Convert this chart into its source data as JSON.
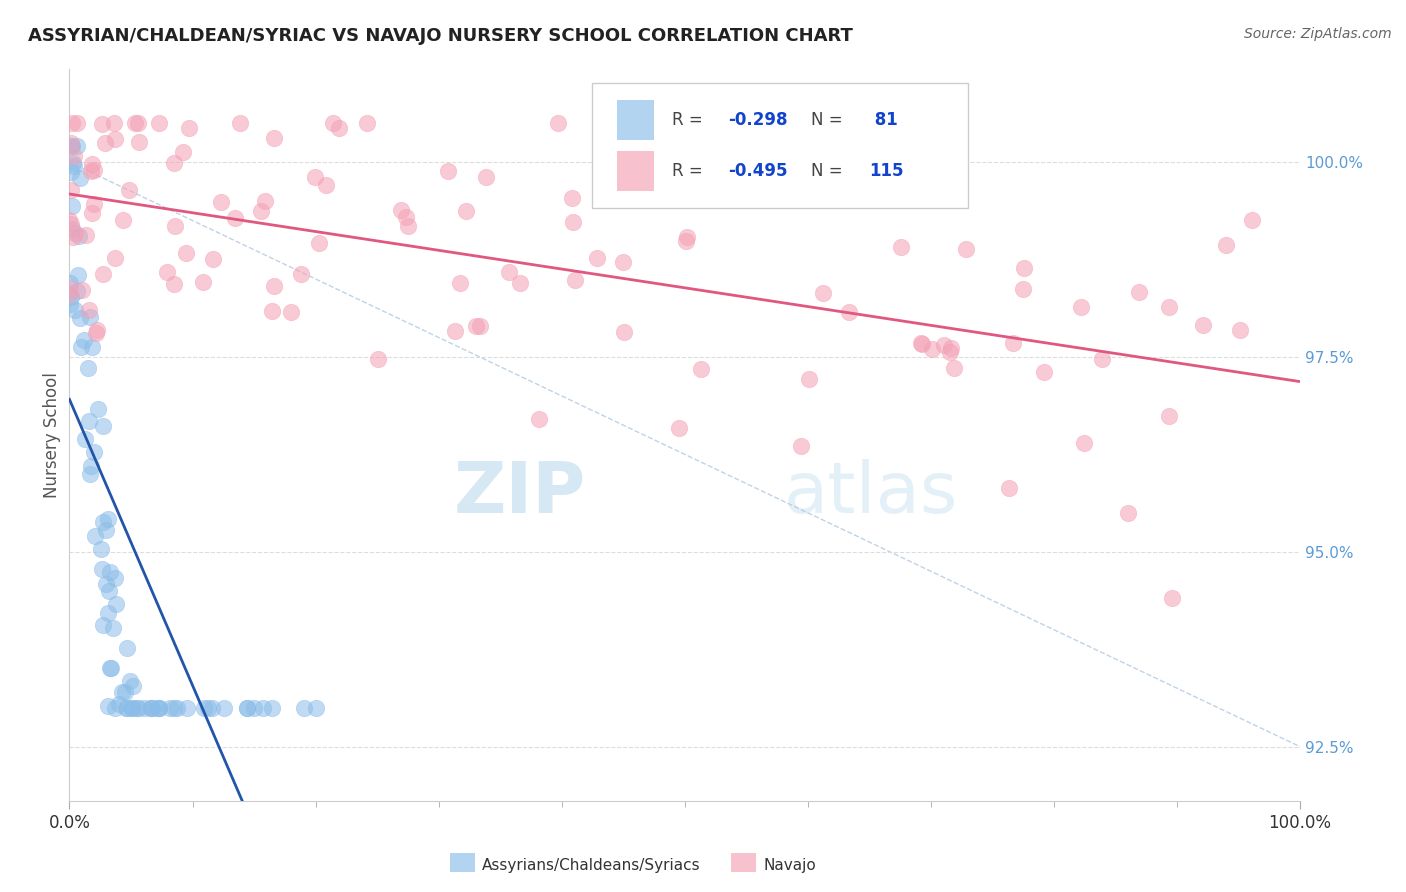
{
  "title": "ASSYRIAN/CHALDEAN/SYRIAC VS NAVAJO NURSERY SCHOOL CORRELATION CHART",
  "source": "Source: ZipAtlas.com",
  "ylabel": "Nursery School",
  "legend_entries": [
    {
      "label": "Assyrians/Chaldeans/Syriacs",
      "R": -0.298,
      "N": 81,
      "color": "#8bbde8",
      "line_color": "#2255aa"
    },
    {
      "label": "Navajo",
      "R": -0.495,
      "N": 115,
      "color": "#f4a0b5",
      "line_color": "#e05880"
    }
  ],
  "background_color": "#ffffff",
  "watermark_zip": "ZIP",
  "watermark_atlas": "atlas",
  "blue_color": "#8bbde8",
  "pink_color": "#f4a0b5",
  "blue_line_color": "#2255aa",
  "pink_line_color": "#e05880",
  "right_tick_color": "#5b9bd5",
  "grid_color": "#dddddd",
  "diag_color": "#b0c8e0",
  "seed": 12
}
